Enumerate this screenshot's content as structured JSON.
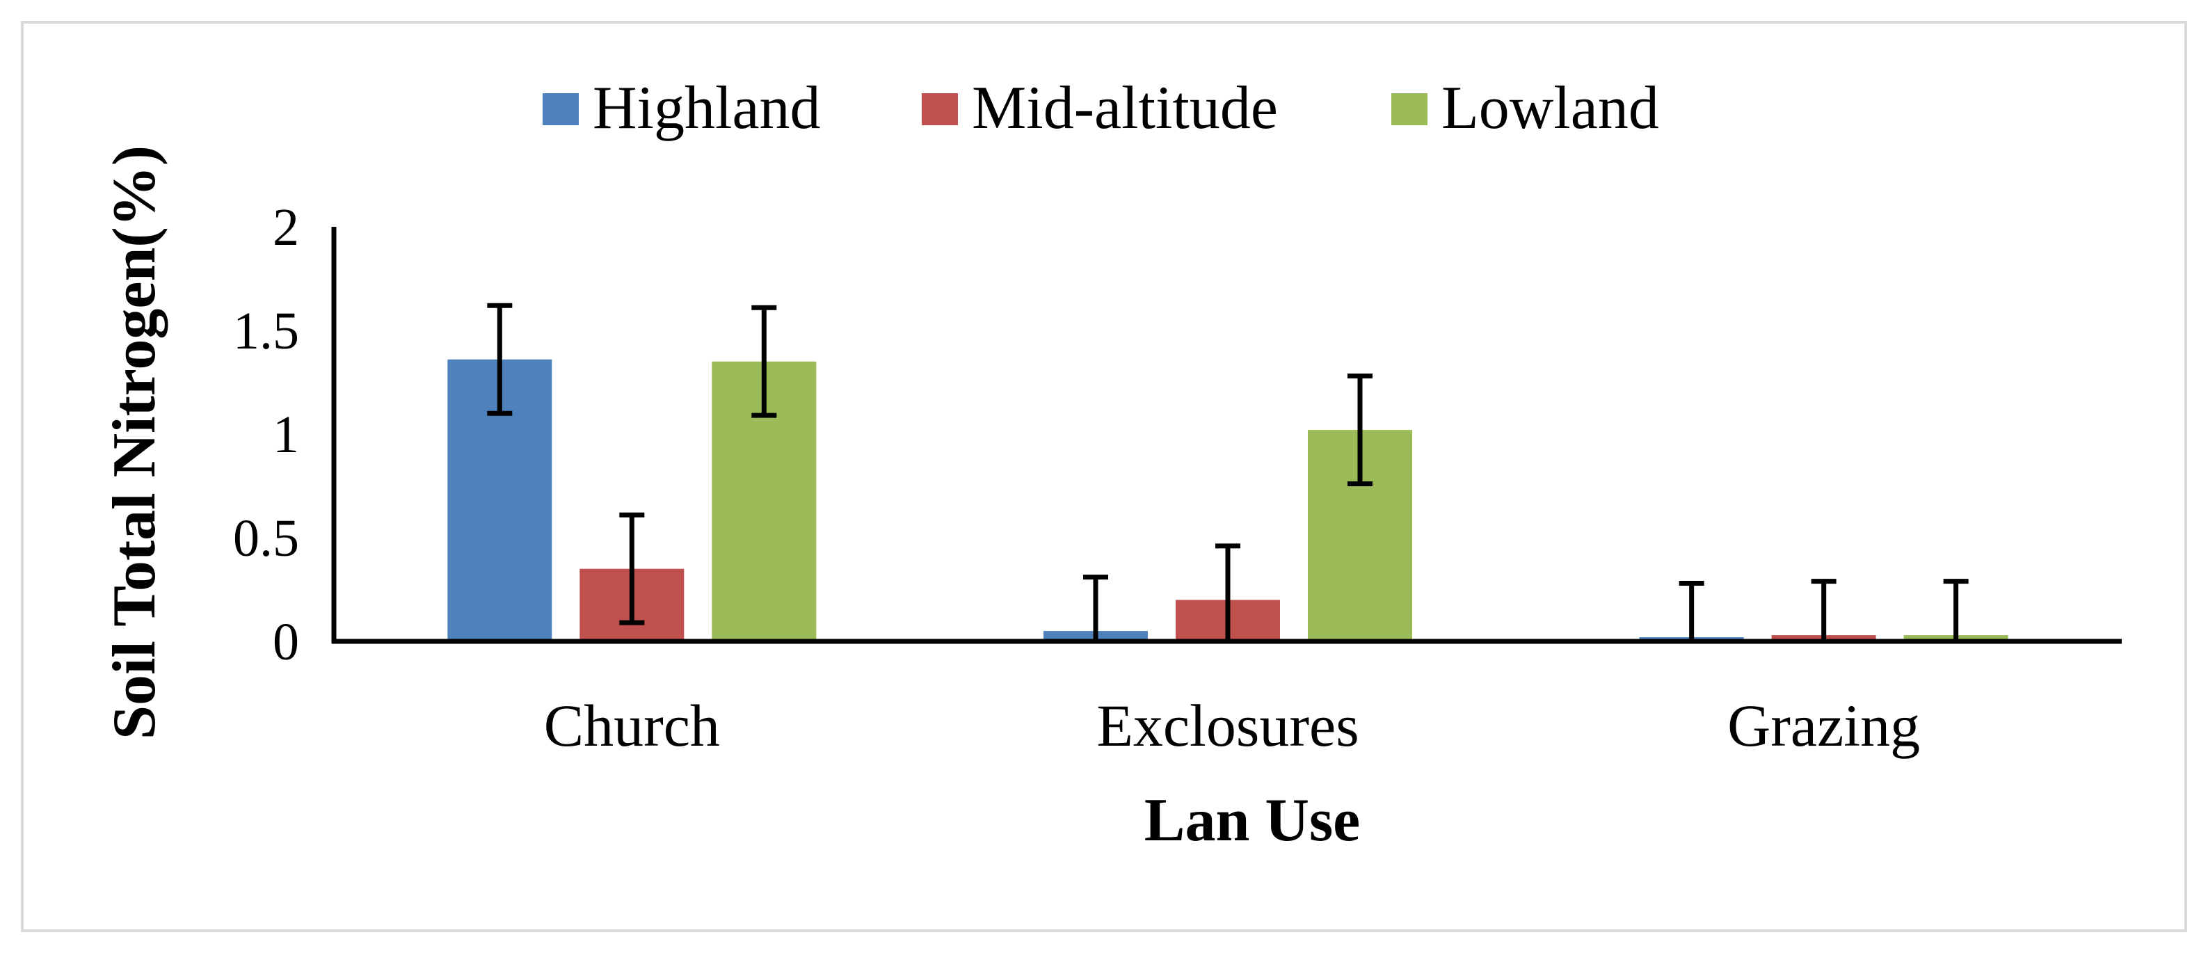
{
  "chart_data": {
    "type": "bar",
    "title": "",
    "xlabel": "Lan Use",
    "ylabel": "Soil Total Nitrogen(%)",
    "categories": [
      "Church",
      "Exclosures",
      "Grazing"
    ],
    "ylim": [
      0,
      2
    ],
    "yticks": [
      "0",
      "0.5",
      "1",
      "1.5",
      "2"
    ],
    "ytick_values": [
      0,
      0.5,
      1,
      1.5,
      2
    ],
    "grid": false,
    "legend_position": "top-center",
    "series": [
      {
        "name": "Highland",
        "color": "#4F81BD",
        "values": [
          1.36,
          0.05,
          0.02
        ],
        "errors": [
          0.26,
          0.26,
          0.26
        ]
      },
      {
        "name": "Mid-altitude",
        "color": "#C0504D",
        "values": [
          0.35,
          0.2,
          0.03
        ],
        "errors": [
          0.26,
          0.26,
          0.26
        ]
      },
      {
        "name": "Lowland",
        "color": "#9BBB59",
        "values": [
          1.35,
          1.02,
          0.03
        ],
        "errors": [
          0.26,
          0.26,
          0.26
        ]
      }
    ]
  }
}
